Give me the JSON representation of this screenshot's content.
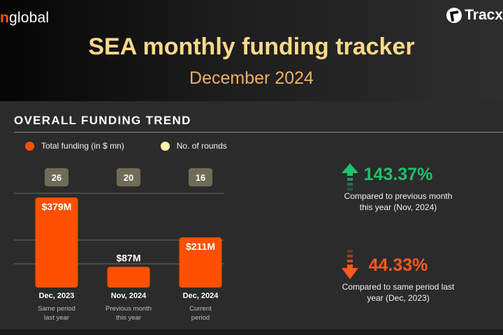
{
  "brand": {
    "left_accent": "n",
    "left_text": "global",
    "right_text": "Tracx"
  },
  "header": {
    "title": "SEA monthly funding tracker",
    "subtitle": "December 2024"
  },
  "section": {
    "title": "OVERALL FUNDING TREND"
  },
  "legend": [
    {
      "label": "Total funding (in $ mn)",
      "color": "#ff5000"
    },
    {
      "label": "No. of rounds",
      "color": "#fff2a8"
    }
  ],
  "chart_data": {
    "type": "bar",
    "categories": [
      "Dec, 2023",
      "Nov, 2024",
      "Dec, 2024"
    ],
    "category_notes": [
      [
        "Same period",
        "last year"
      ],
      [
        "Previous month",
        "this year"
      ],
      [
        "Current",
        "period"
      ]
    ],
    "series": [
      {
        "name": "Total funding (in $ mn)",
        "values": [
          379,
          87,
          211
        ],
        "labels": [
          "$379M",
          "$87M",
          "$211M"
        ]
      },
      {
        "name": "No. of rounds",
        "values": [
          26,
          20,
          16
        ]
      }
    ],
    "colors": {
      "bar": "#ff5000",
      "rounds_box": "#6f6b56",
      "gridline": "#6a6a6a"
    },
    "grid": true
  },
  "stats": [
    {
      "value": "143.37%",
      "direction": "up",
      "color": "#1ec26a",
      "description": [
        "Compared to previous month",
        "this year (Nov, 2024)"
      ]
    },
    {
      "value": "44.33%",
      "direction": "down",
      "color": "#ff5a1f",
      "description": [
        "Compared to same period last",
        "year (Dec, 2023)"
      ]
    }
  ]
}
